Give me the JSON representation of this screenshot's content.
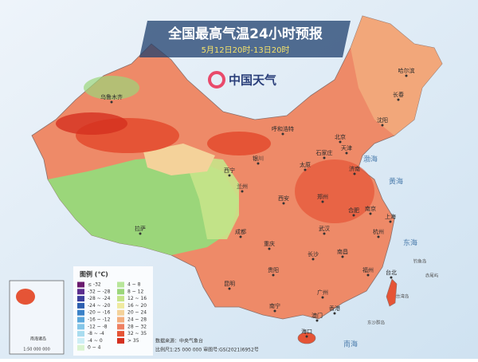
{
  "header": {
    "title": "全国最高气温24小时预报",
    "subtitle": "5月12日20时-13日20时"
  },
  "logo": {
    "text": "中国天气"
  },
  "cities": [
    "乌鲁木齐",
    "哈尔滨",
    "长春",
    "沈阳",
    "呼和浩特",
    "北京",
    "天津",
    "银川",
    "石家庄",
    "太原",
    "济南",
    "西宁",
    "兰州",
    "郑州",
    "西安",
    "合肥",
    "南京",
    "上海",
    "拉萨",
    "成都",
    "武汉",
    "杭州",
    "重庆",
    "长沙",
    "南昌",
    "贵阳",
    "福州",
    "台北",
    "昆明",
    "南宁",
    "广州",
    "香港",
    "澳门",
    "海口"
  ],
  "places": [
    "渤海",
    "黄海",
    "东海",
    "南海",
    "台湾岛",
    "钓鱼岛",
    "赤尾屿",
    "东沙群岛"
  ],
  "legend": {
    "title": "图例 (℃)",
    "items": [
      {
        "label": "≤ -32",
        "color": "#6a1a6e"
      },
      {
        "label": "-32 ~ -28",
        "color": "#5b2d8e"
      },
      {
        "label": "-28 ~ -24",
        "color": "#3c3f9c"
      },
      {
        "label": "-24 ~ -20",
        "color": "#2d5fb0"
      },
      {
        "label": "-20 ~ -16",
        "color": "#3b82c8"
      },
      {
        "label": "-16 ~ -12",
        "color": "#5ca8dc"
      },
      {
        "label": "-12 ~ -8",
        "color": "#84c6e8"
      },
      {
        "label": "-8 ~ -4",
        "color": "#a9dcef"
      },
      {
        "label": "-4 ~ 0",
        "color": "#cdeef5"
      },
      {
        "label": "0 ~ 4",
        "color": "#d9f3d0"
      },
      {
        "label": "4 ~ 8",
        "color": "#b8e69a"
      },
      {
        "label": "8 ~ 12",
        "color": "#9bd67a"
      },
      {
        "label": "12 ~ 16",
        "color": "#c6e48a"
      },
      {
        "label": "16 ~ 20",
        "color": "#efeaa0"
      },
      {
        "label": "20 ~ 24",
        "color": "#f4d29a"
      },
      {
        "label": "24 ~ 28",
        "color": "#f3ae7e"
      },
      {
        "label": "28 ~ 32",
        "color": "#ee8062"
      },
      {
        "label": "32 ~ 35",
        "color": "#e55436"
      },
      {
        "label": "> 35",
        "color": "#d42f1f"
      }
    ]
  },
  "source": {
    "lines": [
      "数据来源：中央气象台",
      "比例尺1:25 000 000  审图号:GS(2021)6952号"
    ]
  },
  "inset": {
    "name": "南海诸岛",
    "scale": "1:50 000 000"
  }
}
